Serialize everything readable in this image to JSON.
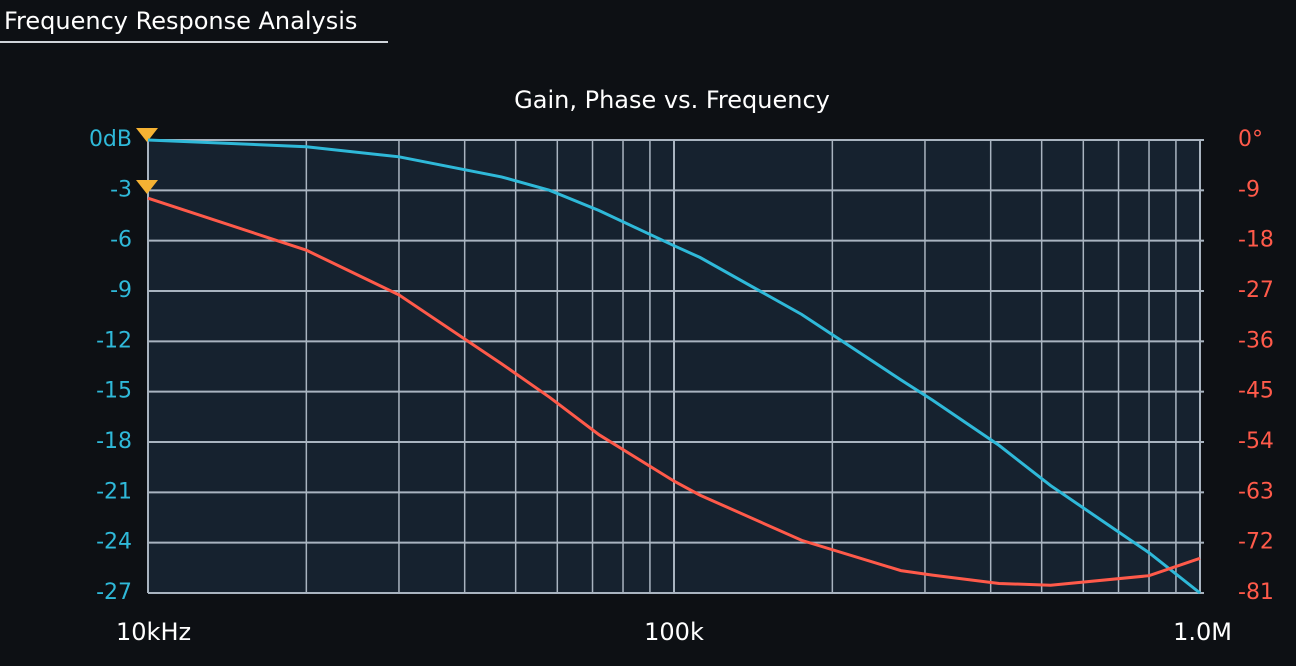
{
  "header": {
    "title": "Frequency Response Analysis"
  },
  "chart_data": {
    "type": "line",
    "title": "Gain, Phase vs. Frequency",
    "x": [
      10000,
      20000,
      30000,
      47000,
      58000,
      72000,
      100000,
      112000,
      175000,
      270000,
      310000,
      415000,
      520000,
      800000,
      1000000
    ],
    "series": [
      {
        "name": "Gain",
        "color": "#2fb9d9",
        "values": [
          0,
          -0.4,
          -1.0,
          -2.2,
          -3.0,
          -4.2,
          -6.3,
          -7.0,
          -10.4,
          -14.3,
          -15.5,
          -18.2,
          -20.6,
          -24.6,
          -27
        ]
      },
      {
        "name": "Phase",
        "color": "#ff5a4a",
        "axis": "y2",
        "values": [
          -10.4,
          -19.7,
          -27.7,
          -40,
          -46,
          -52.7,
          -61,
          -63.5,
          -71.6,
          -77,
          -77.8,
          -79.3,
          -79.6,
          -77.9,
          -74.8
        ]
      }
    ],
    "xscale": "log",
    "xlim": [
      10000,
      1000000
    ],
    "xticks": [
      {
        "value": 10000,
        "label": "10kHz"
      },
      {
        "value": 100000,
        "label": "100k"
      },
      {
        "value": 1000000,
        "label": "1.0M"
      }
    ],
    "x_minor_grid": [
      20000,
      30000,
      40000,
      50000,
      60000,
      70000,
      80000,
      90000,
      200000,
      300000,
      400000,
      500000,
      600000,
      700000,
      800000,
      900000
    ],
    "ylim": [
      -27,
      0
    ],
    "yticks": [
      {
        "value": 0,
        "label": "0dB"
      },
      -3,
      -6,
      -9,
      -12,
      -15,
      -18,
      -21,
      -24,
      -27
    ],
    "y2lim": [
      -81,
      0
    ],
    "y2ticks": [
      {
        "value": 0,
        "label": "0°"
      },
      -9,
      -18,
      -27,
      -36,
      -45,
      -54,
      -63,
      -72,
      -81
    ],
    "grid": true
  }
}
